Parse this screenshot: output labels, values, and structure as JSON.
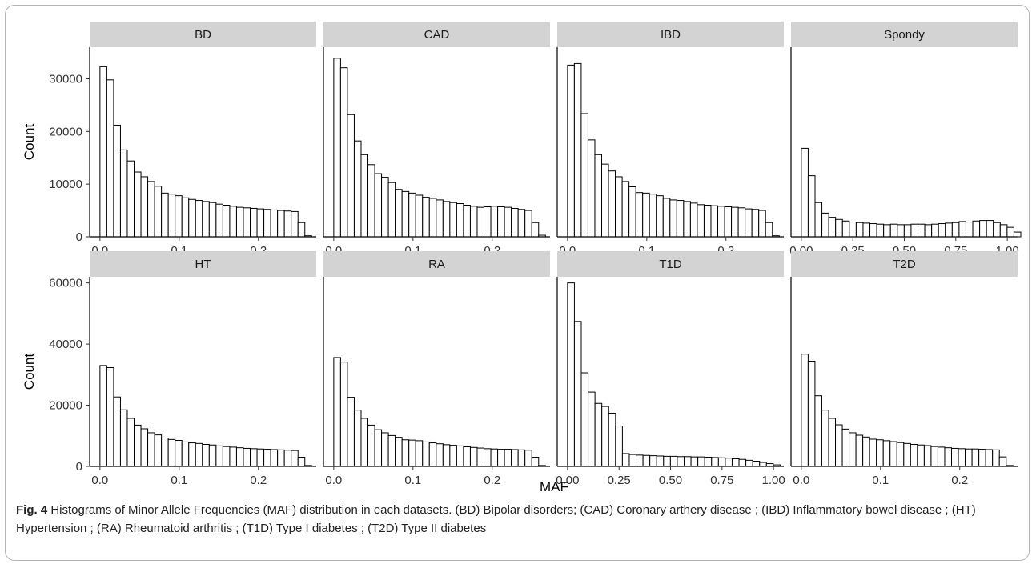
{
  "caption": {
    "label": "Fig. 4",
    "text": "Histograms of Minor Allele Frequencies (MAF) distribution in each datasets. (BD) Bipolar disorders; (CAD) Coronary arthery disease ; (IBD) Inflammatory bowel disease ; (HT) Hypertension ; (RA) Rheumatoid arthritis ; (T1D) Type I diabetes ; (T2D) Type II diabetes"
  },
  "colors": {
    "strip": "#d3d3d3",
    "bar_outline": "#000000",
    "bar_fill": "#ffffff"
  },
  "chart_data": {
    "type": "bar",
    "xlabel": "MAF",
    "ylabel": "Count",
    "grid": false,
    "rows": [
      {
        "ylim": [
          0,
          36000
        ],
        "yticks": [
          0,
          10000,
          20000,
          30000
        ]
      },
      {
        "ylim": [
          0,
          62000
        ],
        "yticks": [
          0,
          20000,
          40000,
          60000
        ]
      }
    ],
    "panels": [
      {
        "name": "BD",
        "row": 0,
        "xlim": [
          -0.013,
          0.273
        ],
        "xticks": [
          0.0,
          0.1,
          0.2
        ],
        "xticklabels": [
          "0.0",
          "0.1",
          "0.2"
        ],
        "bin_start": 0.0,
        "bin_width": 0.00862,
        "values": [
          32300,
          29800,
          21200,
          16500,
          14400,
          12300,
          11400,
          10500,
          9600,
          8300,
          8100,
          7800,
          7400,
          7100,
          6900,
          6700,
          6500,
          6200,
          6000,
          5800,
          5600,
          5500,
          5400,
          5300,
          5200,
          5100,
          5000,
          4900,
          4800,
          2700,
          200
        ]
      },
      {
        "name": "CAD",
        "row": 0,
        "xlim": [
          -0.013,
          0.273
        ],
        "xticks": [
          0.0,
          0.1,
          0.2
        ],
        "xticklabels": [
          "0.0",
          "0.1",
          "0.2"
        ],
        "bin_start": 0.0,
        "bin_width": 0.00862,
        "values": [
          33900,
          32100,
          23200,
          18200,
          15600,
          13700,
          12000,
          11300,
          10300,
          9000,
          8600,
          8300,
          7900,
          7500,
          7300,
          7000,
          6700,
          6500,
          6300,
          6000,
          5800,
          5600,
          5700,
          5800,
          5700,
          5600,
          5400,
          5200,
          5000,
          2700,
          300
        ]
      },
      {
        "name": "IBD",
        "row": 0,
        "xlim": [
          -0.013,
          0.273
        ],
        "xticks": [
          0.0,
          0.1,
          0.2
        ],
        "xticklabels": [
          "0.0",
          "0.1",
          "0.2"
        ],
        "bin_start": 0.0,
        "bin_width": 0.00862,
        "values": [
          32600,
          32900,
          23400,
          18400,
          15600,
          13800,
          12500,
          11400,
          10500,
          9500,
          8400,
          8300,
          8100,
          7800,
          7300,
          7000,
          6900,
          6700,
          6400,
          6100,
          6000,
          5900,
          5800,
          5700,
          5600,
          5500,
          5300,
          5200,
          5000,
          2700,
          200
        ]
      },
      {
        "name": "Spondy",
        "row": 0,
        "xlim": [
          -0.05,
          1.05
        ],
        "xticks": [
          0.0,
          0.25,
          0.5,
          0.75,
          1.0
        ],
        "xticklabels": [
          "0.00",
          "0.25",
          "0.50",
          "0.75",
          "1.00"
        ],
        "bin_start": 0.0,
        "bin_width": 0.0333,
        "values": [
          16800,
          11600,
          6500,
          4500,
          3700,
          3300,
          3000,
          2800,
          2700,
          2600,
          2500,
          2400,
          2300,
          2400,
          2300,
          2300,
          2400,
          2400,
          2300,
          2400,
          2500,
          2600,
          2700,
          2900,
          2800,
          3000,
          3100,
          3100,
          2700,
          2300,
          1800,
          900
        ]
      },
      {
        "name": "HT",
        "row": 1,
        "xlim": [
          -0.013,
          0.273
        ],
        "xticks": [
          0.0,
          0.1,
          0.2
        ],
        "xticklabels": [
          "0.0",
          "0.1",
          "0.2"
        ],
        "bin_start": 0.0,
        "bin_width": 0.00862,
        "values": [
          33000,
          32300,
          22700,
          18500,
          15700,
          13500,
          12300,
          11000,
          10300,
          9300,
          8800,
          8500,
          8000,
          7700,
          7500,
          7200,
          7000,
          6700,
          6500,
          6300,
          6100,
          5900,
          5800,
          5700,
          5600,
          5500,
          5400,
          5300,
          5200,
          3000,
          300
        ]
      },
      {
        "name": "RA",
        "row": 1,
        "xlim": [
          -0.013,
          0.273
        ],
        "xticks": [
          0.0,
          0.1,
          0.2
        ],
        "xticklabels": [
          "0.0",
          "0.1",
          "0.2"
        ],
        "bin_start": 0.0,
        "bin_width": 0.00862,
        "values": [
          35600,
          34100,
          22600,
          18400,
          15700,
          13500,
          12000,
          11000,
          10100,
          9500,
          8700,
          8600,
          8400,
          8000,
          7700,
          7400,
          7100,
          6900,
          6700,
          6400,
          6200,
          6000,
          5800,
          5700,
          5600,
          5600,
          5500,
          5400,
          5300,
          3000,
          300
        ]
      },
      {
        "name": "T1D",
        "row": 1,
        "xlim": [
          -0.05,
          1.05
        ],
        "xticks": [
          0.0,
          0.25,
          0.5,
          0.75,
          1.0
        ],
        "xticklabels": [
          "0.00",
          "0.25",
          "0.50",
          "0.75",
          "1.00"
        ],
        "bin_start": 0.0,
        "bin_width": 0.0333,
        "values": [
          60000,
          47400,
          30600,
          24300,
          20600,
          19600,
          17400,
          13200,
          4200,
          3900,
          3700,
          3600,
          3500,
          3400,
          3300,
          3300,
          3200,
          3200,
          3100,
          3100,
          3000,
          2900,
          2800,
          2700,
          2500,
          2300,
          2000,
          1700,
          1300,
          900,
          500
        ]
      },
      {
        "name": "T2D",
        "row": 1,
        "xlim": [
          -0.013,
          0.273
        ],
        "xticks": [
          0.0,
          0.1,
          0.2
        ],
        "xticklabels": [
          "0.0",
          "0.1",
          "0.2"
        ],
        "bin_start": 0.0,
        "bin_width": 0.00862,
        "values": [
          36700,
          34400,
          23100,
          18400,
          15700,
          13600,
          12200,
          11000,
          10200,
          9600,
          8900,
          8700,
          8400,
          8100,
          7800,
          7500,
          7200,
          7000,
          6800,
          6500,
          6300,
          6100,
          5900,
          5800,
          5700,
          5700,
          5600,
          5500,
          5400,
          3100,
          300
        ]
      }
    ]
  }
}
